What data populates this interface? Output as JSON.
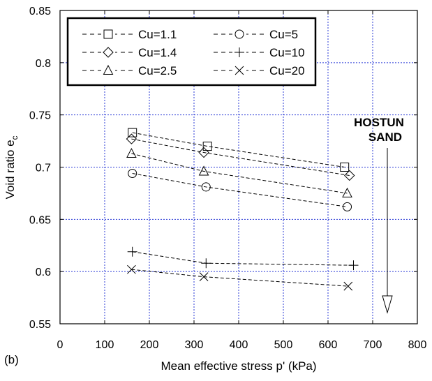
{
  "chart_data": {
    "type": "scatter",
    "panel_label": "(b)",
    "xlabel": "Mean effective stress  p'  (kPa)",
    "ylabel": "Void ratio  e",
    "ylabel_sub": "c",
    "xlim": [
      0,
      800
    ],
    "ylim": [
      0.55,
      0.85
    ],
    "xticks": [
      0,
      100,
      200,
      300,
      400,
      500,
      600,
      700,
      800
    ],
    "yticks": [
      0.55,
      0.6,
      0.65,
      0.7,
      0.75,
      0.8,
      0.85
    ],
    "ytick_labels": [
      "0.55",
      "0.6",
      "0.65",
      "0.7",
      "0.75",
      "0.8",
      "0.85"
    ],
    "grid": true,
    "line_style": "dashed",
    "legend_position": "top-left",
    "annotation": {
      "lines": [
        "HOSTUN",
        "SAND"
      ],
      "arrow": "down"
    },
    "series": [
      {
        "name": "Cu=1.1",
        "marker": "square",
        "x": [
          162,
          330,
          637
        ],
        "y": [
          0.733,
          0.72,
          0.7
        ]
      },
      {
        "name": "Cu=1.4",
        "marker": "diamond",
        "x": [
          160,
          322,
          648
        ],
        "y": [
          0.727,
          0.714,
          0.692
        ]
      },
      {
        "name": "Cu=2.5",
        "marker": "triangle",
        "x": [
          160,
          322,
          643
        ],
        "y": [
          0.713,
          0.696,
          0.675
        ]
      },
      {
        "name": "Cu=5",
        "marker": "circle",
        "x": [
          162,
          327,
          643
        ],
        "y": [
          0.694,
          0.681,
          0.662
        ]
      },
      {
        "name": "Cu=10",
        "marker": "plus",
        "x": [
          162,
          327,
          657
        ],
        "y": [
          0.619,
          0.608,
          0.606
        ]
      },
      {
        "name": "Cu=20",
        "marker": "x",
        "x": [
          160,
          322,
          645
        ],
        "y": [
          0.602,
          0.595,
          0.586
        ]
      }
    ]
  }
}
